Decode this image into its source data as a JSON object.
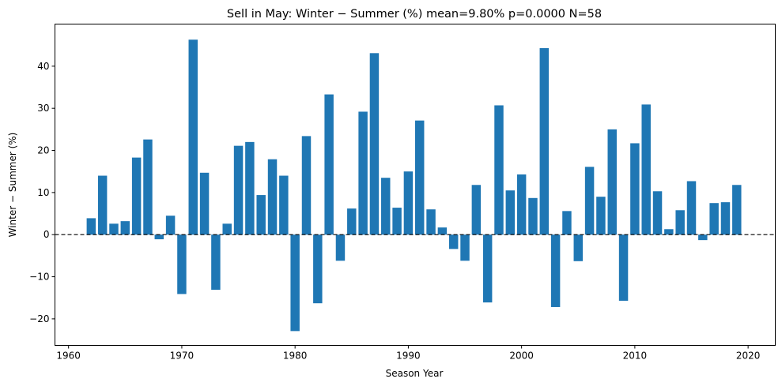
{
  "chart_data": {
    "type": "bar",
    "title": "Sell in May: Winter − Summer (%)  mean=9.80%  p=0.0000  N=58",
    "xlabel": "Season Year",
    "ylabel": "Winter − Summer (%)",
    "xlim": [
      1958.8,
      2022.4
    ],
    "ylim": [
      -26.3,
      50
    ],
    "xticks": [
      1960,
      1970,
      1980,
      1990,
      2000,
      2010,
      2020
    ],
    "yticks": [
      -20,
      -10,
      0,
      10,
      20,
      30,
      40
    ],
    "grid": false,
    "reference_line": {
      "y": 0,
      "style": "dashed",
      "color": "#000000"
    },
    "bar_color": "#1f77b4",
    "x": [
      1962,
      1963,
      1964,
      1965,
      1966,
      1967,
      1968,
      1969,
      1970,
      1971,
      1972,
      1973,
      1974,
      1975,
      1976,
      1977,
      1978,
      1979,
      1980,
      1981,
      1982,
      1983,
      1984,
      1985,
      1986,
      1987,
      1988,
      1989,
      1990,
      1991,
      1992,
      1993,
      1994,
      1995,
      1996,
      1997,
      1998,
      1999,
      2000,
      2001,
      2002,
      2003,
      2004,
      2005,
      2006,
      2007,
      2008,
      2009,
      2010,
      2011,
      2012,
      2013,
      2014,
      2015,
      2016,
      2017,
      2018,
      2019
    ],
    "values": [
      3.9,
      14.0,
      2.6,
      3.2,
      18.3,
      22.6,
      -1.1,
      4.5,
      -14.1,
      46.3,
      14.7,
      -13.1,
      2.6,
      21.1,
      22.0,
      9.4,
      17.9,
      14.0,
      -22.9,
      23.4,
      -16.3,
      33.3,
      -6.2,
      6.2,
      29.2,
      43.1,
      13.5,
      6.4,
      15.0,
      27.1,
      6.0,
      1.7,
      -3.4,
      -6.2,
      11.8,
      -16.1,
      30.7,
      10.5,
      14.3,
      8.7,
      44.3,
      -17.2,
      5.6,
      -6.3,
      16.1,
      9.0,
      25.0,
      -15.7,
      21.7,
      30.9,
      10.3,
      1.3,
      5.8,
      12.7,
      -1.3,
      7.5,
      7.7,
      11.8
    ]
  }
}
